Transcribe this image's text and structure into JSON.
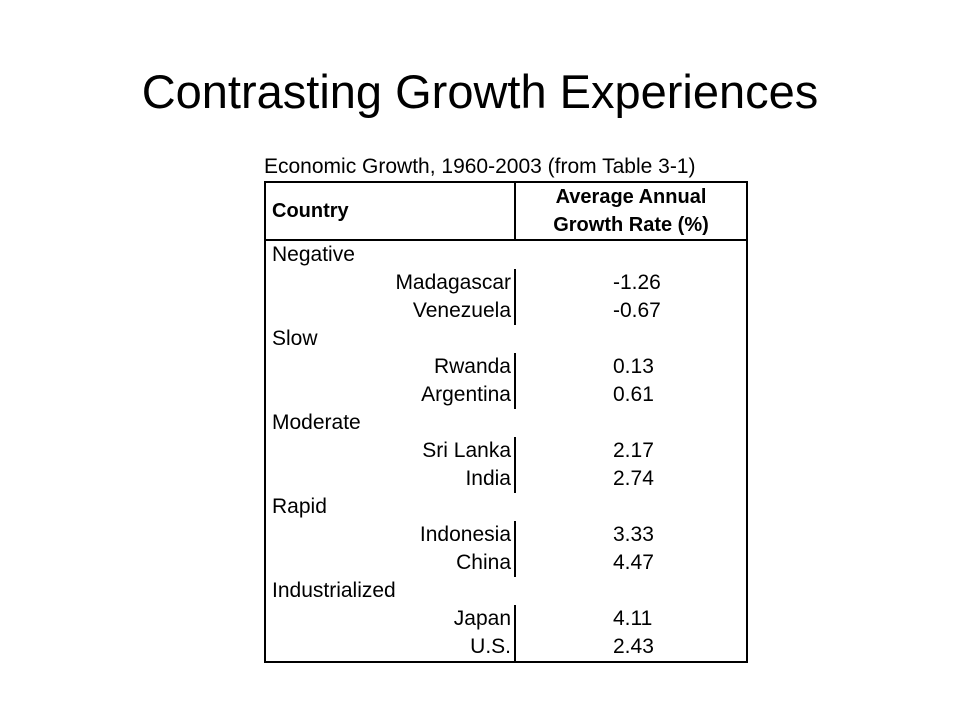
{
  "slide": {
    "title": "Contrasting Growth Experiences"
  },
  "table": {
    "caption": "Economic Growth, 1960-2003 (from Table 3-1)",
    "header": {
      "country": "Country",
      "rate_line1": "Average Annual",
      "rate_line2": "Growth Rate (%)"
    },
    "groups": [
      {
        "label": "Negative",
        "rows": [
          {
            "country": "Madagascar",
            "value": "-1.26"
          },
          {
            "country": "Venezuela",
            "value": "-0.67"
          }
        ]
      },
      {
        "label": "Slow",
        "rows": [
          {
            "country": "Rwanda",
            "value": "0.13"
          },
          {
            "country": "Argentina",
            "value": "0.61"
          }
        ]
      },
      {
        "label": "Moderate",
        "rows": [
          {
            "country": "Sri Lanka",
            "value": "2.17"
          },
          {
            "country": "India",
            "value": "2.74"
          }
        ]
      },
      {
        "label": "Rapid",
        "rows": [
          {
            "country": "Indonesia",
            "value": "3.33"
          },
          {
            "country": "China",
            "value": "4.47"
          }
        ]
      },
      {
        "label": "Industrialized",
        "rows": [
          {
            "country": "Japan",
            "value": "4.11"
          },
          {
            "country": "U.S.",
            "value": "2.43"
          }
        ]
      }
    ]
  }
}
